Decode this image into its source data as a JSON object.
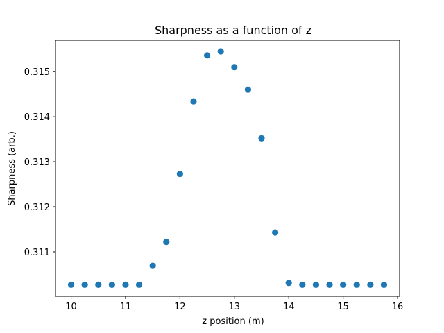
{
  "chart_data": {
    "type": "scatter",
    "title": "Sharpness as a function of z",
    "xlabel": "z position (m)",
    "ylabel": "Sharpness (arb.)",
    "xlim": [
      9.7125,
      16.0375
    ],
    "ylim": [
      0.310014,
      0.315696
    ],
    "xticks": [
      10,
      11,
      12,
      13,
      14,
      15,
      16
    ],
    "xtick_labels": [
      "10",
      "11",
      "12",
      "13",
      "14",
      "15",
      "16"
    ],
    "yticks": [
      0.311,
      0.312,
      0.313,
      0.314,
      0.315
    ],
    "ytick_labels": [
      "0.311",
      "0.312",
      "0.313",
      "0.314",
      "0.315"
    ],
    "marker_color": "#1f77b4",
    "grid": false,
    "series": [
      {
        "name": "sharpness",
        "x": [
          10.0,
          10.25,
          10.5,
          10.75,
          11.0,
          11.25,
          11.5,
          11.75,
          12.0,
          12.25,
          12.5,
          12.75,
          13.0,
          13.25,
          13.5,
          13.75,
          14.0,
          14.25,
          14.5,
          14.75,
          15.0,
          15.25,
          15.5,
          15.75
        ],
        "y": [
          0.31027,
          0.31027,
          0.31027,
          0.31027,
          0.31027,
          0.31027,
          0.31069,
          0.31122,
          0.31273,
          0.31434,
          0.31536,
          0.31545,
          0.3151,
          0.3146,
          0.31352,
          0.31143,
          0.31031,
          0.31027,
          0.31027,
          0.31027,
          0.31027,
          0.31027,
          0.31027,
          0.31027
        ]
      }
    ]
  }
}
